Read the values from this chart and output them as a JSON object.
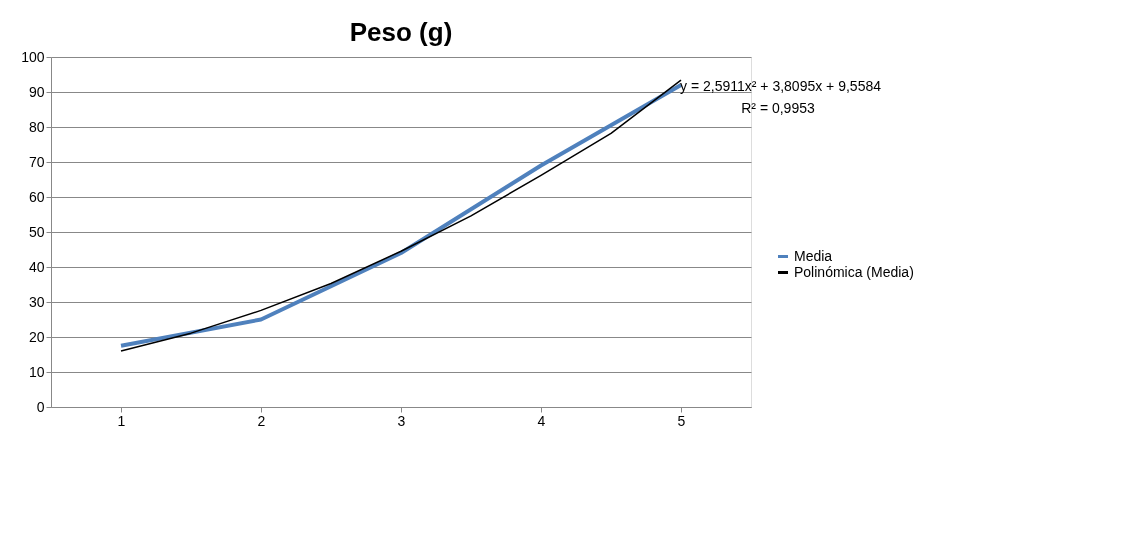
{
  "chart_data": {
    "type": "line",
    "title": "Peso (g)",
    "x": [
      1,
      2,
      3,
      4,
      5
    ],
    "xlim": [
      0.5,
      5.5
    ],
    "xticks": [
      1,
      2,
      3,
      4,
      5
    ],
    "ylim": [
      0,
      100
    ],
    "yticks": [
      0,
      10,
      20,
      30,
      40,
      50,
      60,
      70,
      80,
      90,
      100
    ],
    "grid": "y",
    "legend": "right",
    "marker": "none",
    "line_style": "solid",
    "series": [
      {
        "name": "Media",
        "color": "#4f81bd",
        "values": [
          17.5,
          25,
          44,
          69,
          92
        ]
      },
      {
        "name": "Polinómica (Media)",
        "color": "#000000",
        "type": "line",
        "x": [
          1,
          1.5,
          2,
          2.5,
          3,
          3.5,
          4,
          4.5,
          5
        ],
        "values": [
          16.0,
          21.1,
          27.6,
          35.3,
          44.5,
          54.6,
          66.2,
          78.2,
          93.4
        ]
      }
    ],
    "annotations": [
      "y = 2,5911x² + 3,8095x + 9,5584",
      "R² = 0,9953"
    ]
  }
}
